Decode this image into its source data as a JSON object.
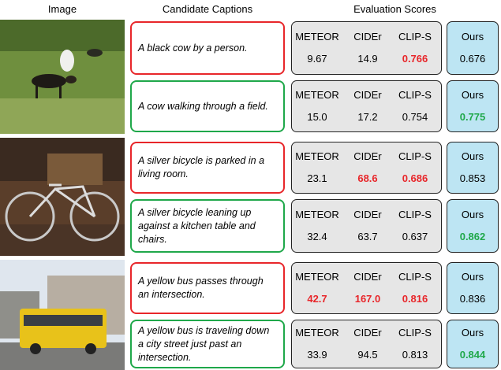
{
  "header": {
    "image": "Image",
    "captions": "Candidate Captions",
    "scores": "Evaluation Scores"
  },
  "metric_names": [
    "METEOR",
    "CIDEr",
    "CLIP-S",
    "Ours"
  ],
  "colors": {
    "red": "#e8262a",
    "green": "#1fa84a",
    "gray_box": "#e6e6e6",
    "ours_box": "#bde5f3"
  },
  "rows": [
    {
      "caption": "A black cow by a person.",
      "border": "red",
      "scores": [
        {
          "text": "9.67",
          "style": null
        },
        {
          "text": "14.9",
          "style": null
        },
        {
          "text": "0.766",
          "style": "red"
        },
        {
          "text": "0.676",
          "style": null
        }
      ]
    },
    {
      "caption": "A cow walking through a field.",
      "border": "green",
      "scores": [
        {
          "text": "15.0",
          "style": null
        },
        {
          "text": "17.2",
          "style": null
        },
        {
          "text": "0.754",
          "style": null
        },
        {
          "text": "0.775",
          "style": "green"
        }
      ]
    },
    {
      "caption": "A silver bicycle is parked in a living room.",
      "border": "red",
      "scores": [
        {
          "text": "23.1",
          "style": null
        },
        {
          "text": "68.6",
          "style": "red"
        },
        {
          "text": "0.686",
          "style": "red"
        },
        {
          "text": "0.853",
          "style": null
        }
      ]
    },
    {
      "caption": "A silver bicycle leaning up against a kitchen table and chairs.",
      "border": "green",
      "scores": [
        {
          "text": "32.4",
          "style": null
        },
        {
          "text": "63.7",
          "style": null
        },
        {
          "text": "0.637",
          "style": null
        },
        {
          "text": "0.862",
          "style": "green"
        }
      ]
    },
    {
      "caption": "A yellow bus passes through an intersection.",
      "border": "red",
      "scores": [
        {
          "text": "42.7",
          "style": "red"
        },
        {
          "text": "167.0",
          "style": "red"
        },
        {
          "text": "0.816",
          "style": "red"
        },
        {
          "text": "0.836",
          "style": null
        }
      ]
    },
    {
      "caption": "A yellow bus is traveling down a city street just past an intersection.",
      "border": "green",
      "scores": [
        {
          "text": "33.9",
          "style": null
        },
        {
          "text": "94.5",
          "style": null
        },
        {
          "text": "0.813",
          "style": null
        },
        {
          "text": "0.844",
          "style": "green"
        }
      ]
    }
  ]
}
